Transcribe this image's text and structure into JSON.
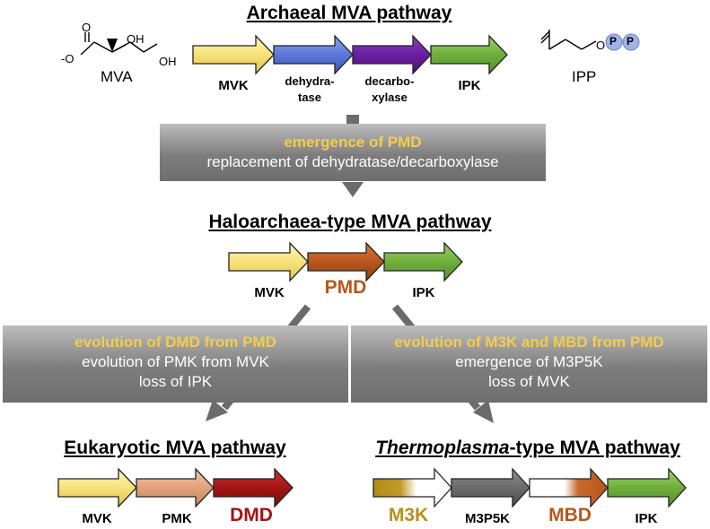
{
  "archaeal": {
    "title": "Archaeal MVA pathway",
    "mva_label": "MVA",
    "ipp_label": "IPP",
    "oh1": "OH",
    "oh2": "OH",
    "o_minus": "-O",
    "o_atom": "O",
    "o_ipp": "O",
    "p1": "P",
    "p2": "P",
    "genes": [
      "MVK",
      "dehydra-",
      "tase",
      "decarbo-",
      "xylase",
      "IPK"
    ]
  },
  "box1": {
    "highlight": "emergence of PMD",
    "line2": "replacement of dehydratase/decarboxylase"
  },
  "halo": {
    "title": "Haloarchaea-type MVA pathway",
    "genes": [
      "MVK",
      "PMD",
      "IPK"
    ]
  },
  "box_left": {
    "highlight": "evolution of DMD from PMD",
    "line2": "evolution of PMK from MVK",
    "line3": "loss of IPK"
  },
  "box_right": {
    "highlight": "evolution of M3K and MBD from PMD",
    "line2": "emergence of M3P5K",
    "line3": "loss of MVK"
  },
  "euk": {
    "title": "Eukaryotic MVA pathway",
    "genes": [
      "MVK",
      "PMK",
      "DMD"
    ]
  },
  "thermo": {
    "title_italic": "Thermoplasma",
    "title_rest": "-type MVA pathway",
    "genes": [
      "M3K",
      "M3P5K",
      "MBD",
      "IPK"
    ]
  },
  "colors": {
    "yellow": "#f7e27a",
    "blue": "#5b78d6",
    "purple": "#6a1fa0",
    "green": "#6fae3d",
    "orange": "#b8561c",
    "peach": "#e1a27a",
    "darkred": "#a31515",
    "gold": "#b8901e",
    "gray": "#6b6b6b",
    "highlight": "#f3cd4a",
    "p_circle": "#9fb4e6"
  }
}
